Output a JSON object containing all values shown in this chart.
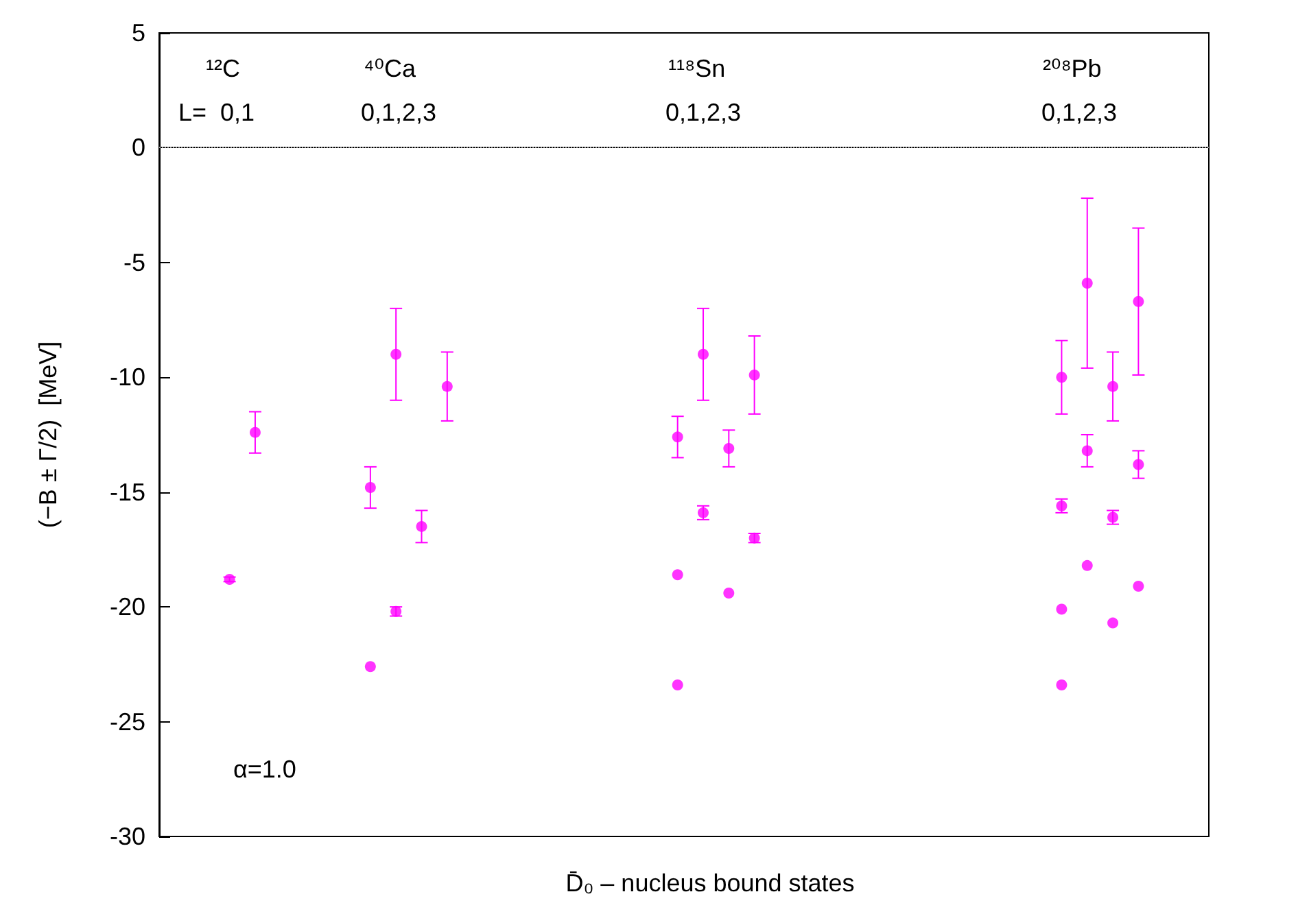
{
  "chart_data": {
    "type": "scatter",
    "xlabel": "D̄₀ – nucleus bound states",
    "ylabel": "(−B ± Γ/2)  [MeV]",
    "annotations": [
      "¹²C",
      "⁴⁰Ca",
      "¹¹⁸Sn",
      "²⁰⁸Pb",
      "L=  0,1",
      "0,1,2,3",
      "0,1,2,3",
      "0,1,2,3",
      "α=1.0"
    ],
    "categories": [
      null,
      null,
      null,
      null,
      null,
      null,
      null,
      null,
      null,
      null,
      null,
      null,
      null,
      null,
      null,
      null,
      null,
      null,
      null,
      null,
      null,
      null,
      null,
      null,
      null,
      null,
      null,
      null,
      null,
      null,
      null,
      null,
      null,
      null,
      null,
      null,
      null,
      null,
      null,
      null,
      null,
      null,
      null,
      null,
      null,
      null,
      null,
      null,
      null,
      null,
      null,
      null,
      null,
      null,
      null,
      null,
      null,
      null,
      null,
      null,
      null,
      null,
      null,
      null,
      null,
      null,
      null,
      null,
      null,
      null,
      null,
      null,
      null,
      null,
      null,
      null,
      null,
      null,
      null,
      null,
      null,
      null
    ],
    "series": [
      {
        "color": "#ff00ff",
        "values": [
          null,
          null,
          null,
          null,
          null,
          -18.8,
          null,
          -12.4,
          null,
          null,
          null,
          null,
          null,
          null,
          null,
          null,
          -22.6,
          null,
          -20.2,
          null,
          -16.5,
          null,
          -10.4,
          null,
          null,
          null,
          null,
          null,
          null,
          null,
          null,
          null,
          null,
          null,
          null,
          null,
          null,
          null,
          null,
          null,
          -23.4,
          null,
          -15.9,
          null,
          -19.4,
          null,
          -17.0,
          null,
          null,
          null,
          null,
          null,
          null,
          null,
          null,
          null,
          null,
          null,
          null,
          null,
          null,
          null,
          null,
          null,
          null,
          null,
          null,
          null,
          null,
          null,
          -23.4,
          null,
          -18.2,
          null,
          -20.7,
          null,
          -19.1,
          null,
          null,
          null,
          null,
          null
        ],
        "errors": [
          null,
          null,
          null,
          null,
          null,
          0.1,
          null,
          0.9,
          null,
          null,
          null,
          null,
          null,
          null,
          null,
          null,
          null,
          null,
          0.2,
          null,
          0.7,
          null,
          1.5,
          null,
          null,
          null,
          null,
          null,
          null,
          null,
          null,
          null,
          null,
          null,
          null,
          null,
          null,
          null,
          null,
          null,
          null,
          null,
          0.3,
          null,
          null,
          null,
          0.2,
          null,
          null,
          null,
          null,
          null,
          null,
          null,
          null,
          null,
          null,
          null,
          null,
          null,
          null,
          null,
          null,
          null,
          null,
          null,
          null,
          null,
          null,
          null,
          null,
          null,
          null,
          null,
          null,
          null,
          null,
          null,
          null,
          null,
          null,
          null
        ]
      },
      {
        "color": "#ff00ff",
        "values": [
          null,
          null,
          null,
          null,
          null,
          null,
          null,
          null,
          null,
          null,
          null,
          null,
          null,
          null,
          null,
          null,
          -14.8,
          null,
          -9.0,
          null,
          null,
          null,
          null,
          null,
          null,
          null,
          null,
          null,
          null,
          null,
          null,
          null,
          null,
          null,
          null,
          null,
          null,
          null,
          null,
          null,
          -18.6,
          null,
          -9.0,
          null,
          -13.1,
          null,
          -9.9,
          null,
          null,
          null,
          null,
          null,
          null,
          null,
          null,
          null,
          null,
          null,
          null,
          null,
          null,
          null,
          null,
          null,
          null,
          null,
          null,
          null,
          null,
          null,
          -20.1,
          null,
          -13.2,
          null,
          -16.1,
          null,
          -13.8,
          null,
          null,
          null,
          null,
          null
        ],
        "errors": [
          null,
          null,
          null,
          null,
          null,
          null,
          null,
          null,
          null,
          null,
          null,
          null,
          null,
          null,
          null,
          null,
          0.9,
          null,
          2.0,
          null,
          null,
          null,
          null,
          null,
          null,
          null,
          null,
          null,
          null,
          null,
          null,
          null,
          null,
          null,
          null,
          null,
          null,
          null,
          null,
          null,
          null,
          null,
          2.0,
          null,
          0.8,
          null,
          1.7,
          null,
          null,
          null,
          null,
          null,
          null,
          null,
          null,
          null,
          null,
          null,
          null,
          null,
          null,
          null,
          null,
          null,
          null,
          null,
          null,
          null,
          null,
          null,
          null,
          null,
          0.7,
          null,
          0.3,
          null,
          0.6,
          null,
          null,
          null,
          null,
          null
        ]
      },
      {
        "color": "#ff00ff",
        "values": [
          null,
          null,
          null,
          null,
          null,
          null,
          null,
          null,
          null,
          null,
          null,
          null,
          null,
          null,
          null,
          null,
          null,
          null,
          null,
          null,
          null,
          null,
          null,
          null,
          null,
          null,
          null,
          null,
          null,
          null,
          null,
          null,
          null,
          null,
          null,
          null,
          null,
          null,
          null,
          null,
          -12.6,
          null,
          null,
          null,
          null,
          null,
          null,
          null,
          null,
          null,
          null,
          null,
          null,
          null,
          null,
          null,
          null,
          null,
          null,
          null,
          null,
          null,
          null,
          null,
          null,
          null,
          null,
          null,
          null,
          null,
          -15.6,
          null,
          -5.9,
          null,
          -10.4,
          null,
          -6.7,
          null,
          null,
          null,
          null,
          null
        ],
        "errors": [
          null,
          null,
          null,
          null,
          null,
          null,
          null,
          null,
          null,
          null,
          null,
          null,
          null,
          null,
          null,
          null,
          null,
          null,
          null,
          null,
          null,
          null,
          null,
          null,
          null,
          null,
          null,
          null,
          null,
          null,
          null,
          null,
          null,
          null,
          null,
          null,
          null,
          null,
          null,
          null,
          0.9,
          null,
          null,
          null,
          null,
          null,
          null,
          null,
          null,
          null,
          null,
          null,
          null,
          null,
          null,
          null,
          null,
          null,
          null,
          null,
          null,
          null,
          null,
          null,
          null,
          null,
          null,
          null,
          null,
          null,
          0.3,
          null,
          3.7,
          null,
          1.5,
          null,
          3.2,
          null,
          null,
          null,
          null,
          null
        ]
      },
      {
        "color": "#ff00ff",
        "values": [
          null,
          null,
          null,
          null,
          null,
          null,
          null,
          null,
          null,
          null,
          null,
          null,
          null,
          null,
          null,
          null,
          null,
          null,
          null,
          null,
          null,
          null,
          null,
          null,
          null,
          null,
          null,
          null,
          null,
          null,
          null,
          null,
          null,
          null,
          null,
          null,
          null,
          null,
          null,
          null,
          null,
          null,
          null,
          null,
          null,
          null,
          null,
          null,
          null,
          null,
          null,
          null,
          null,
          null,
          null,
          null,
          null,
          null,
          null,
          null,
          null,
          null,
          null,
          null,
          null,
          null,
          null,
          null,
          null,
          null,
          -10.0,
          null,
          null,
          null,
          null,
          null,
          null,
          null,
          null,
          null,
          null,
          null
        ],
        "errors": [
          null,
          null,
          null,
          null,
          null,
          null,
          null,
          null,
          null,
          null,
          null,
          null,
          null,
          null,
          null,
          null,
          null,
          null,
          null,
          null,
          null,
          null,
          null,
          null,
          null,
          null,
          null,
          null,
          null,
          null,
          null,
          null,
          null,
          null,
          null,
          null,
          null,
          null,
          null,
          null,
          null,
          null,
          null,
          null,
          null,
          null,
          null,
          null,
          null,
          null,
          null,
          null,
          null,
          null,
          null,
          null,
          null,
          null,
          null,
          null,
          null,
          null,
          null,
          null,
          null,
          null,
          null,
          null,
          null,
          null,
          1.6,
          null,
          null,
          null,
          null,
          null,
          null,
          null,
          null,
          null,
          null,
          null
        ]
      }
    ],
    "ylim": [
      -30,
      5
    ],
    "yticks": [
      -30,
      -25,
      -20,
      -15,
      -10,
      -5,
      0,
      5
    ],
    "ref_lines": [
      {
        "axis": "y",
        "value": 0,
        "color": "#999999",
        "line_style": "dotted"
      }
    ],
    "tick_labels": "y",
    "marker": "circle"
  }
}
